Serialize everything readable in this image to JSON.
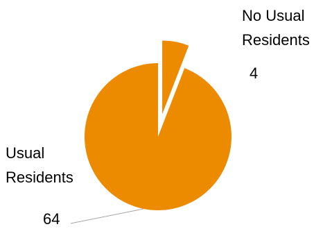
{
  "chart_data": {
    "type": "pie",
    "exploded": true,
    "series": [
      {
        "values": [
          4,
          64
        ]
      }
    ],
    "categories": [
      "No Usual Residents",
      "Usual Residents"
    ],
    "category_label_lines": [
      [
        "No Usual",
        "Residents"
      ],
      [
        "Usual",
        "Residents"
      ]
    ],
    "values": [
      4,
      64
    ],
    "value_labels": [
      "4",
      "64"
    ],
    "colors": [
      "#ED8B00",
      "#ED8B00"
    ],
    "leader_line_color": "#A6A6A6",
    "legend": "none"
  }
}
